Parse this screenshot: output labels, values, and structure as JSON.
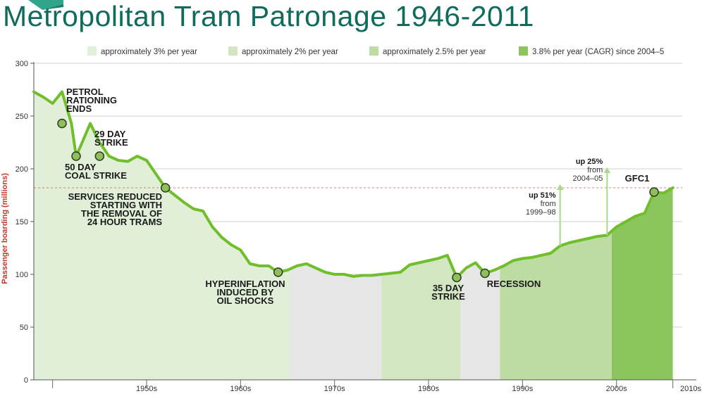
{
  "title": "Metropolitan Tram Patronage 1946-2011",
  "colors": {
    "title": "#0f6b5c",
    "line": "#6fbf2a",
    "dashed": "#d9534f"
  },
  "chart_data": {
    "type": "area",
    "ylabel": "Passenger boarding (millions)",
    "ylim": [
      0,
      300
    ],
    "yticks": [
      0,
      50,
      100,
      150,
      200,
      250,
      300
    ],
    "xlim": [
      1943,
      2012
    ],
    "decades": [
      "1950s",
      "1960s",
      "1970s",
      "1980s",
      "1990s",
      "2000s",
      "2010s"
    ],
    "legend": [
      {
        "label": "approximately 3% per year",
        "color": "#e1efd8"
      },
      {
        "label": "approximately 2% per year",
        "color": "#d2e6c2"
      },
      {
        "label": "approximately 2.5% per year",
        "color": "#bcdca2"
      },
      {
        "label": "3.8% per year (CAGR) since 2004–5",
        "color": "#8cc45e"
      }
    ],
    "bands": [
      {
        "from": 1943,
        "to": 1970.3,
        "color": "#e1efd8"
      },
      {
        "from": 1970.3,
        "to": 1980,
        "color": "#e6e6e6"
      },
      {
        "from": 1980,
        "to": 1988.4,
        "color": "#d2e6c2"
      },
      {
        "from": 1988.4,
        "to": 1992.6,
        "color": "#e6e6e6"
      },
      {
        "from": 1992.6,
        "to": 2004.5,
        "color": "#bcdca2"
      },
      {
        "from": 2004.5,
        "to": 2011,
        "color": "#8cc45e"
      }
    ],
    "reference_line": 182,
    "series": [
      {
        "x": [
          1943,
          1944,
          1945,
          1946,
          1947,
          1947.5,
          1948,
          1949,
          1950,
          1951,
          1952,
          1953,
          1954,
          1955,
          1956,
          1957,
          1958,
          1959,
          1960,
          1961,
          1962,
          1963,
          1964,
          1965,
          1966,
          1967,
          1968,
          1969,
          1970,
          1971,
          1972,
          1973,
          1974,
          1975,
          1976,
          1977,
          1978,
          1979,
          1980,
          1981,
          1982,
          1983,
          1984,
          1985,
          1986,
          1987,
          1988,
          1989,
          1990,
          1991,
          1992,
          1993,
          1994,
          1995,
          1996,
          1997,
          1998,
          1999,
          2000,
          2001,
          2002,
          2003,
          2004,
          2005,
          2006,
          2007,
          2008,
          2009,
          2010,
          2011
        ],
        "values": [
          273,
          268,
          262,
          273,
          243,
          212,
          222,
          243,
          225,
          212,
          208,
          207,
          212,
          208,
          195,
          182,
          175,
          168,
          162,
          160,
          145,
          135,
          128,
          123,
          110,
          108,
          108,
          102,
          104,
          108,
          110,
          106,
          102,
          100,
          100,
          98,
          99,
          99,
          100,
          101,
          102,
          109,
          111,
          113,
          115,
          118,
          97,
          106,
          111,
          101,
          104,
          108,
          113,
          115,
          116,
          118,
          120,
          127,
          130,
          132,
          134,
          136,
          137,
          145,
          150,
          155,
          158,
          178,
          177,
          182
        ]
      }
    ],
    "annotations": [
      {
        "x": 1946,
        "y": 243,
        "lines": [
          "PETROL",
          "RATIONING",
          "ENDS"
        ]
      },
      {
        "x": 1947.5,
        "y": 212,
        "lines": [
          "50 DAY",
          "COAL STRIKE"
        ]
      },
      {
        "x": 1950,
        "y": 212,
        "lines": [
          "29 DAY",
          "STRIKE"
        ]
      },
      {
        "x": 1957,
        "y": 182,
        "lines": [
          "SERVICES REDUCED",
          "STARTING WITH",
          "THE REMOVAL OF",
          "24 HOUR TRAMS"
        ]
      },
      {
        "x": 1969,
        "y": 102,
        "lines": [
          "HYPERINFLATION",
          "INDUCED BY",
          "OIL SHOCKS"
        ]
      },
      {
        "x": 1988,
        "y": 97,
        "lines": [
          "35 DAY",
          "STRIKE"
        ]
      },
      {
        "x": 1991,
        "y": 101,
        "lines": [
          "RECESSION"
        ]
      },
      {
        "x": 2009,
        "y": 178,
        "lines": [
          "GFC1"
        ]
      }
    ],
    "callouts": [
      {
        "x": 1999,
        "from": 127,
        "bold": "up 51%",
        "text": [
          "from",
          "1999–98"
        ]
      },
      {
        "x": 2004,
        "from": 137,
        "bold": "up 25%",
        "text": [
          "from",
          "2004–05"
        ]
      }
    ]
  }
}
